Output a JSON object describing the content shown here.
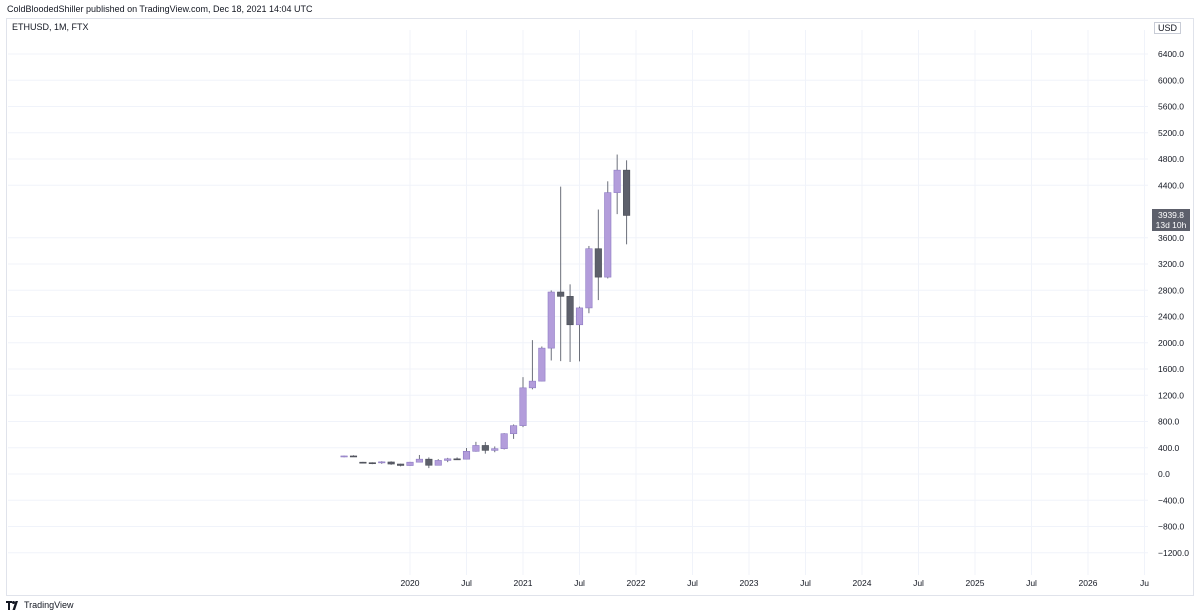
{
  "header": {
    "published_line": "ColdBloodedShiller published on TradingView.com, Dec 18, 2021 14:04 UTC"
  },
  "legend": {
    "symbol": "ETHUSD, 1M, FTX",
    "currency": "USD"
  },
  "price_tag": {
    "value": "3939.8",
    "countdown": "13d 10h"
  },
  "footer": {
    "brand": "TradingView"
  },
  "colors": {
    "up": "#b39ddb",
    "up_border": "#8e7cc3",
    "down": "#5d606b",
    "wick": "#6b6f7a",
    "axis_text": "#131722"
  },
  "chart_data": {
    "type": "candlestick",
    "title": "ETHUSD, 1M, FTX",
    "ylim": [
      -1350,
      7000
    ],
    "y_ticks": [
      6400,
      6000,
      5600,
      5200,
      4800,
      4400,
      3600,
      3200,
      2800,
      2400,
      2000,
      1600,
      1200,
      800,
      400,
      0,
      -400,
      -800,
      -1200
    ],
    "y_tick_labels": [
      "6400.0",
      "6000.0",
      "5600.0",
      "5200.0",
      "4800.0",
      "4400.0",
      "3600.0",
      "3200.0",
      "2800.0",
      "2400.0",
      "2000.0",
      "1600.0",
      "1200.0",
      "800.0",
      "400.0",
      "0.0",
      "−400.0",
      "−800.0",
      "−1200.0"
    ],
    "x_ticks": [
      "2020",
      "Jul",
      "2021",
      "Jul",
      "2022",
      "Jul",
      "2023",
      "Jul",
      "2024",
      "Jul",
      "2025",
      "Jul",
      "2026",
      "Ju"
    ],
    "x_tick_months": [
      0,
      6,
      12,
      18,
      24,
      30,
      36,
      42,
      48,
      54,
      60,
      66,
      72,
      78
    ],
    "candles": [
      {
        "month": "2019-06",
        "open": 268,
        "high": 280,
        "low": 255,
        "close": 275
      },
      {
        "month": "2019-07",
        "open": 275,
        "high": 285,
        "low": 262,
        "close": 268
      },
      {
        "month": "2019-08",
        "open": 180,
        "high": 185,
        "low": 160,
        "close": 177
      },
      {
        "month": "2019-09",
        "open": 172,
        "high": 178,
        "low": 150,
        "close": 161
      },
      {
        "month": "2019-10",
        "open": 180,
        "high": 195,
        "low": 155,
        "close": 185
      },
      {
        "month": "2019-11",
        "open": 183,
        "high": 193,
        "low": 140,
        "close": 152
      },
      {
        "month": "2019-12",
        "open": 152,
        "high": 157,
        "low": 116,
        "close": 130
      },
      {
        "month": "2020-01",
        "open": 129,
        "high": 185,
        "low": 125,
        "close": 180
      },
      {
        "month": "2020-02",
        "open": 180,
        "high": 290,
        "low": 175,
        "close": 226
      },
      {
        "month": "2020-03",
        "open": 226,
        "high": 253,
        "low": 90,
        "close": 133
      },
      {
        "month": "2020-04",
        "open": 133,
        "high": 227,
        "low": 130,
        "close": 207
      },
      {
        "month": "2020-05",
        "open": 207,
        "high": 246,
        "low": 181,
        "close": 231
      },
      {
        "month": "2020-06",
        "open": 231,
        "high": 253,
        "low": 217,
        "close": 226
      },
      {
        "month": "2020-07",
        "open": 226,
        "high": 396,
        "low": 221,
        "close": 346
      },
      {
        "month": "2020-08",
        "open": 346,
        "high": 490,
        "low": 340,
        "close": 435
      },
      {
        "month": "2020-09",
        "open": 435,
        "high": 488,
        "low": 310,
        "close": 360
      },
      {
        "month": "2020-10",
        "open": 360,
        "high": 420,
        "low": 332,
        "close": 386
      },
      {
        "month": "2020-11",
        "open": 386,
        "high": 622,
        "low": 374,
        "close": 614
      },
      {
        "month": "2020-12",
        "open": 614,
        "high": 755,
        "low": 535,
        "close": 737
      },
      {
        "month": "2021-01",
        "open": 737,
        "high": 1476,
        "low": 715,
        "close": 1313
      },
      {
        "month": "2021-02",
        "open": 1313,
        "high": 2040,
        "low": 1290,
        "close": 1415
      },
      {
        "month": "2021-03",
        "open": 1415,
        "high": 1943,
        "low": 1410,
        "close": 1918
      },
      {
        "month": "2021-04",
        "open": 1918,
        "high": 2797,
        "low": 1730,
        "close": 2773
      },
      {
        "month": "2021-05",
        "open": 2773,
        "high": 4380,
        "low": 1720,
        "close": 2707
      },
      {
        "month": "2021-06",
        "open": 2707,
        "high": 2890,
        "low": 1707,
        "close": 2274
      },
      {
        "month": "2021-07",
        "open": 2274,
        "high": 2550,
        "low": 1717,
        "close": 2531
      },
      {
        "month": "2021-08",
        "open": 2531,
        "high": 3475,
        "low": 2450,
        "close": 3433
      },
      {
        "month": "2021-09",
        "open": 3433,
        "high": 4030,
        "low": 2650,
        "close": 3000
      },
      {
        "month": "2021-10",
        "open": 3000,
        "high": 4460,
        "low": 2980,
        "close": 4288
      },
      {
        "month": "2021-11",
        "open": 4288,
        "high": 4868,
        "low": 3960,
        "close": 4630
      },
      {
        "month": "2021-12",
        "open": 4630,
        "high": 4780,
        "low": 3500,
        "close": 3939.8
      }
    ]
  }
}
